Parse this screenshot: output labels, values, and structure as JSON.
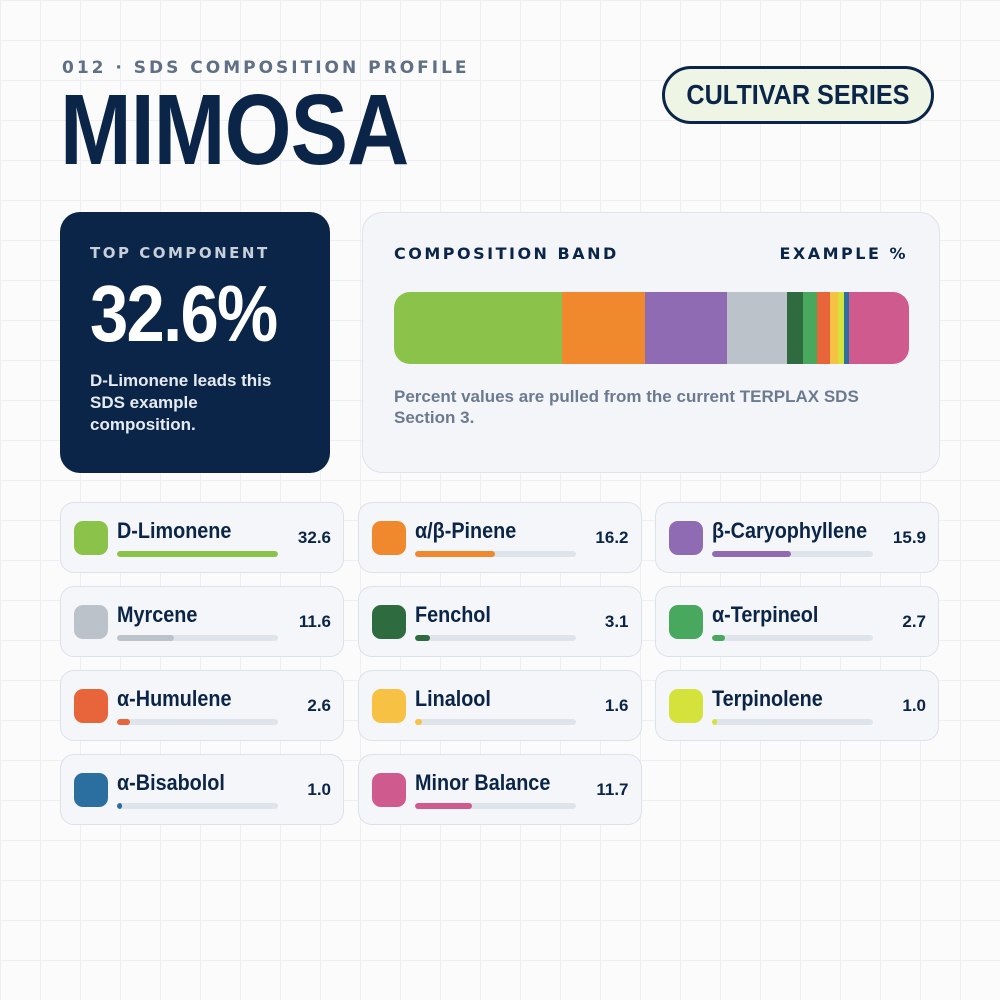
{
  "header": {
    "eyebrow": "012 · SDS COMPOSITION PROFILE",
    "title": "MIMOSA",
    "series_badge": "CULTIVAR SERIES"
  },
  "top_component": {
    "label": "TOP COMPONENT",
    "value": "32.6%",
    "note": "D-Limonene leads this SDS example composition."
  },
  "band": {
    "label_left": "COMPOSITION BAND",
    "label_right": "EXAMPLE %",
    "note": "Percent values are pulled from the current TERPLAX SDS Section 3."
  },
  "chart_data": {
    "type": "bar",
    "categories": [
      "D-Limonene",
      "α/β-Pinene",
      "β-Caryophyllene",
      "Myrcene",
      "Fenchol",
      "α-Terpineol",
      "α-Humulene",
      "Linalool",
      "Terpinolene",
      "α-Bisabolol",
      "Minor Balance"
    ],
    "values": [
      32.6,
      16.2,
      15.9,
      11.6,
      3.1,
      2.7,
      2.6,
      1.6,
      1.0,
      1.0,
      11.7
    ],
    "value_labels": [
      "32.6",
      "16.2",
      "15.9",
      "11.6",
      "3.1",
      "2.7",
      "2.6",
      "1.6",
      "1.0",
      "1.0",
      "11.7"
    ],
    "colors": [
      "#8bc34a",
      "#f0892e",
      "#8e6bb3",
      "#bcc2ca",
      "#2e6b3f",
      "#48a85e",
      "#e8643a",
      "#f7c244",
      "#d6e23c",
      "#2b6fa0",
      "#cf5a8e"
    ],
    "band_order": [
      0,
      1,
      2,
      3,
      4,
      5,
      6,
      7,
      8,
      9,
      10
    ],
    "ylim": [
      0,
      100
    ],
    "title": "",
    "xlabel": "",
    "ylabel": ""
  }
}
